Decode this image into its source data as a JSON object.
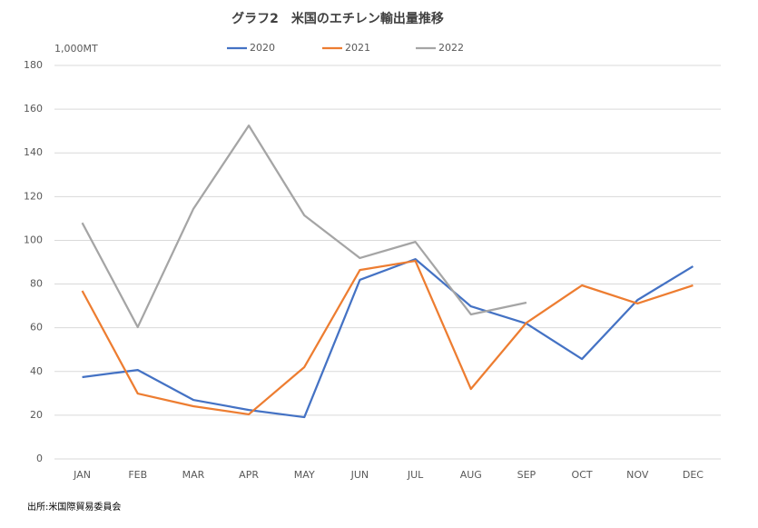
{
  "chart_data": {
    "type": "line",
    "title": "グラフ2　米国のエチレン輸出量推移",
    "y_label": "1,000MT",
    "source": "出所:米国際貿易委員会",
    "categories": [
      "JAN",
      "FEB",
      "MAR",
      "APR",
      "MAY",
      "JUN",
      "JUL",
      "AUG",
      "SEP",
      "OCT",
      "NOV",
      "DEC"
    ],
    "series": [
      {
        "name": "2020",
        "color": "#4472c4",
        "values": [
          37.4,
          40.7,
          27,
          22.4,
          19.1,
          81.9,
          91.4,
          69.8,
          61.9,
          45.7,
          72.7,
          88.1
        ]
      },
      {
        "name": "2021",
        "color": "#ed7d31",
        "values": [
          76.9,
          29.9,
          24.1,
          20.4,
          42,
          86.4,
          90.6,
          32,
          62.3,
          79.4,
          71.1,
          79.4
        ]
      },
      {
        "name": "2022",
        "color": "#a5a5a5",
        "values": [
          108,
          60.3,
          114.3,
          152.5,
          111.4,
          91.9,
          99.3,
          66.1,
          71.5,
          null,
          null,
          null
        ]
      }
    ],
    "ylim": [
      0,
      180
    ],
    "yticks": [
      0,
      20,
      40,
      60,
      80,
      100,
      120,
      140,
      160,
      180
    ],
    "grid": true,
    "legend": "top"
  }
}
